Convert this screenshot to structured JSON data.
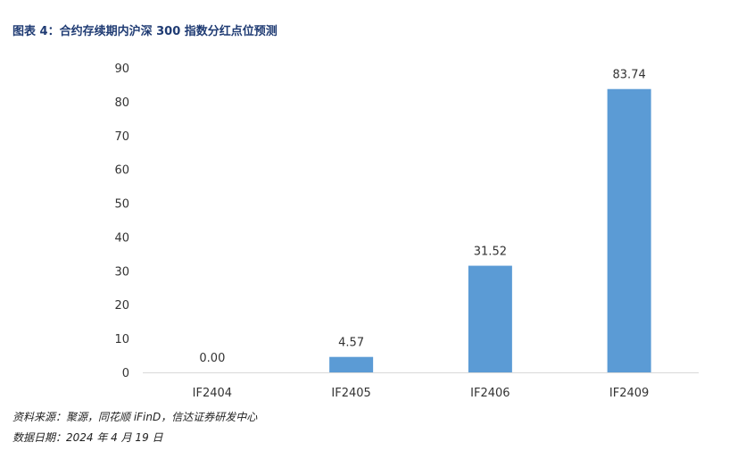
{
  "figure_title": "图表 4：合约存续期内沪深 300 指数分红点位预测",
  "source_note": "资料来源：聚源，同花顺 iFinD，信达证券研发中心",
  "date_note": "数据日期：2024 年 4 月 19 日",
  "colors": {
    "bar": "#5b9bd5",
    "title": "#1f3b73",
    "axis": "#d9d9d9"
  },
  "chart_data": {
    "type": "bar",
    "categories": [
      "IF2404",
      "IF2405",
      "IF2406",
      "IF2409"
    ],
    "values": [
      0.0,
      4.57,
      31.52,
      83.74
    ],
    "value_labels": [
      "0.00",
      "4.57",
      "31.52",
      "83.74"
    ],
    "ylim": [
      0,
      90
    ],
    "yticks": [
      0,
      10,
      20,
      30,
      40,
      50,
      60,
      70,
      80,
      90
    ],
    "grid": false,
    "legend": "none"
  }
}
